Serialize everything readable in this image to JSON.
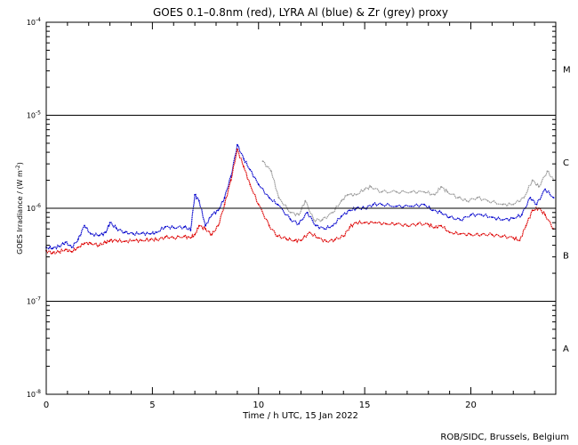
{
  "chart_data": {
    "type": "line",
    "title": "GOES 0.1–0.8nm (red), LYRA Al (blue) & Zr (grey) proxy",
    "xlabel": "Time / h UTC, 15 Jan 2022",
    "ylabel_pre": "GOES Irradiance / (W m",
    "ylabel_sup": "-2",
    "ylabel_post": ")",
    "xlim": [
      0,
      24
    ],
    "ylim": [
      1e-08,
      0.0001
    ],
    "yscale": "log",
    "x_ticks": [
      0,
      5,
      10,
      15,
      20
    ],
    "y_ticks": [
      {
        "value": 0.0001,
        "base": "10",
        "exp": "-4"
      },
      {
        "value": 1e-05,
        "base": "10",
        "exp": "-5"
      },
      {
        "value": 1e-06,
        "base": "10",
        "exp": "-6"
      },
      {
        "value": 1e-07,
        "base": "10",
        "exp": "-7"
      },
      {
        "value": 1e-08,
        "base": "10",
        "exp": "-8"
      }
    ],
    "reference_lines": [
      1e-05,
      1e-06,
      1e-07
    ],
    "flare_classes": [
      {
        "label": "M",
        "value": 3.16e-05
      },
      {
        "label": "C",
        "value": 3.16e-06
      },
      {
        "label": "B",
        "value": 3.16e-07
      },
      {
        "label": "A",
        "value": 3.16e-08
      }
    ],
    "series": [
      {
        "color": "#999999",
        "x": [
          10.2,
          10.6,
          10.95,
          11.5,
          11.9,
          12.2,
          12.6,
          13.0,
          13.5,
          13.9,
          14.2,
          14.6,
          15.0,
          15.3,
          15.8,
          16.5,
          17.2,
          17.8,
          18.3,
          18.6,
          18.9,
          19.4,
          19.8,
          20.3,
          20.8,
          21.5,
          22.0,
          22.5,
          22.9,
          23.2,
          23.6,
          23.9
        ],
        "y": [
          3.2e-06,
          2.5e-06,
          1.3e-06,
          9e-07,
          8.5e-07,
          1.2e-06,
          7.5e-07,
          7.5e-07,
          9e-07,
          1.2e-06,
          1.4e-06,
          1.4e-06,
          1.6e-06,
          1.7e-06,
          1.5e-06,
          1.5e-06,
          1.5e-06,
          1.5e-06,
          1.4e-06,
          1.7e-06,
          1.5e-06,
          1.3e-06,
          1.2e-06,
          1.3e-06,
          1.2e-06,
          1.1e-06,
          1.1e-06,
          1.3e-06,
          2e-06,
          1.7e-06,
          2.5e-06,
          2e-06
        ]
      },
      {
        "color": "#0000cc",
        "x": [
          0.0,
          0.3,
          0.6,
          0.9,
          1.2,
          1.5,
          1.8,
          2.1,
          2.5,
          2.8,
          3.0,
          3.3,
          3.7,
          4.1,
          4.5,
          4.9,
          5.2,
          5.6,
          6.0,
          6.5,
          6.8,
          7.0,
          7.2,
          7.5,
          7.8,
          8.1,
          8.4,
          8.7,
          9.0,
          9.3,
          9.6,
          10.0,
          10.5,
          10.9,
          11.5,
          11.9,
          12.3,
          12.7,
          13.1,
          13.5,
          13.9,
          14.3,
          14.6,
          15.0,
          15.4,
          15.8,
          16.5,
          17.2,
          17.8,
          18.2,
          18.6,
          19.0,
          19.5,
          20.0,
          20.5,
          21.0,
          21.5,
          22.0,
          22.4,
          22.8,
          23.1,
          23.5,
          23.9
        ],
        "y": [
          3.8e-07,
          3.7e-07,
          3.9e-07,
          4.3e-07,
          3.8e-07,
          4.6e-07,
          6.5e-07,
          5.3e-07,
          5.1e-07,
          5.5e-07,
          7e-07,
          6.1e-07,
          5.5e-07,
          5.3e-07,
          5.4e-07,
          5.3e-07,
          5.5e-07,
          6.3e-07,
          6.2e-07,
          6.3e-07,
          5.8e-07,
          1.4e-06,
          1.2e-06,
          6.5e-07,
          8.5e-07,
          9.5e-07,
          1.3e-06,
          2.2e-06,
          4.8e-06,
          3.4e-06,
          2.6e-06,
          1.8e-06,
          1.3e-06,
          1.1e-06,
          7.6e-07,
          6.8e-07,
          9e-07,
          6.5e-07,
          6e-07,
          6.5e-07,
          8.2e-07,
          9.5e-07,
          1e-06,
          1e-06,
          1.1e-06,
          1.1e-06,
          1.05e-06,
          1.05e-06,
          1.1e-06,
          9.5e-07,
          9e-07,
          8e-07,
          7.5e-07,
          8.5e-07,
          8.5e-07,
          8e-07,
          7.5e-07,
          7.8e-07,
          8.5e-07,
          1.3e-06,
          1.1e-06,
          1.6e-06,
          1.3e-06
        ]
      },
      {
        "color": "#dd0000",
        "x": [
          0.0,
          0.3,
          0.6,
          0.9,
          1.2,
          1.5,
          1.8,
          2.1,
          2.5,
          2.8,
          3.0,
          3.3,
          3.7,
          4.1,
          4.5,
          4.9,
          5.2,
          5.6,
          6.0,
          6.5,
          6.8,
          7.0,
          7.2,
          7.5,
          7.8,
          8.1,
          8.4,
          8.7,
          9.0,
          9.3,
          9.6,
          10.0,
          10.5,
          10.9,
          11.3,
          11.7,
          12.0,
          12.4,
          12.8,
          13.2,
          13.6,
          14.0,
          14.3,
          14.6,
          15.0,
          15.5,
          16.0,
          16.5,
          17.0,
          17.5,
          18.0,
          18.3,
          18.6,
          19.0,
          19.5,
          20.0,
          20.5,
          21.0,
          21.5,
          22.0,
          22.3,
          22.6,
          22.9,
          23.2,
          23.5,
          23.9
        ],
        "y": [
          3.5e-07,
          3.3e-07,
          3.4e-07,
          3.6e-07,
          3.4e-07,
          3.8e-07,
          4.2e-07,
          4.2e-07,
          4e-07,
          4.3e-07,
          4.5e-07,
          4.5e-07,
          4.4e-07,
          4.5e-07,
          4.5e-07,
          4.6e-07,
          4.6e-07,
          4.9e-07,
          4.8e-07,
          5e-07,
          4.8e-07,
          5.2e-07,
          6.5e-07,
          6e-07,
          5.2e-07,
          6.5e-07,
          1.1e-06,
          2e-06,
          4.3e-06,
          2.8e-06,
          1.8e-06,
          1.1e-06,
          6.5e-07,
          5e-07,
          4.7e-07,
          4.5e-07,
          4.5e-07,
          5.5e-07,
          4.8e-07,
          4.4e-07,
          4.6e-07,
          5e-07,
          6.3e-07,
          7e-07,
          7e-07,
          7e-07,
          6.8e-07,
          6.8e-07,
          6.5e-07,
          6.8e-07,
          6.7e-07,
          6.2e-07,
          6.5e-07,
          5.5e-07,
          5.3e-07,
          5.2e-07,
          5.2e-07,
          5.2e-07,
          5e-07,
          4.8e-07,
          4.5e-07,
          6.5e-07,
          9.5e-07,
          1e-06,
          8.5e-07,
          6e-07
        ]
      }
    ]
  },
  "footer": {
    "credit": "ROB/SIDC, Brussels, Belgium"
  }
}
